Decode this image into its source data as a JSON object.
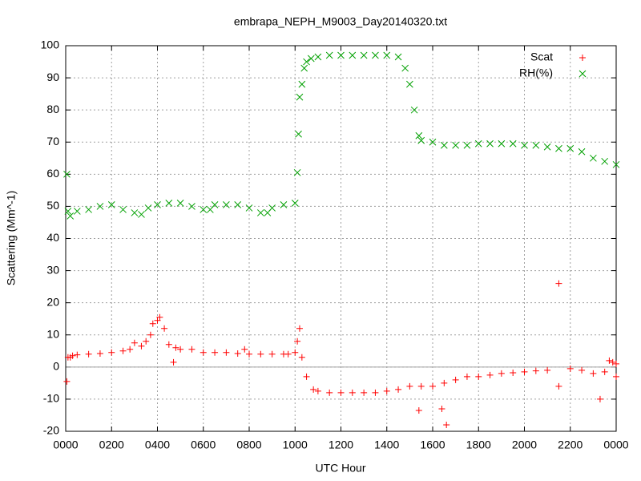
{
  "chart_data": {
    "type": "scatter",
    "title": "embrapa_NEPH_M9003_Day20140320.txt",
    "xlabel": "UTC Hour",
    "ylabel": "Scattering (Mm^-1)",
    "xlim": [
      0,
      24
    ],
    "xticks": [
      {
        "value": 0,
        "label": "0000"
      },
      {
        "value": 2,
        "label": "0200"
      },
      {
        "value": 4,
        "label": "0400"
      },
      {
        "value": 6,
        "label": "0600"
      },
      {
        "value": 8,
        "label": "0800"
      },
      {
        "value": 10,
        "label": "1000"
      },
      {
        "value": 12,
        "label": "1200"
      },
      {
        "value": 14,
        "label": "1400"
      },
      {
        "value": 16,
        "label": "1600"
      },
      {
        "value": 18,
        "label": "1800"
      },
      {
        "value": 20,
        "label": "2000"
      },
      {
        "value": 22,
        "label": "2200"
      },
      {
        "value": 24,
        "label": "0000"
      }
    ],
    "ylim": [
      -20,
      100
    ],
    "yticks": [
      -20,
      -10,
      0,
      10,
      20,
      30,
      40,
      50,
      60,
      70,
      80,
      90,
      100
    ],
    "grid": true,
    "zeroaxis": true,
    "legend": "top-right",
    "series": [
      {
        "name": "Scat",
        "color": "#ff0000",
        "marker": "plus",
        "x": [
          0.05,
          0.1,
          0.2,
          0.3,
          0.5,
          1,
          1.5,
          2,
          2.5,
          2.8,
          3,
          3.3,
          3.5,
          3.7,
          3.8,
          4,
          4.1,
          4.3,
          4.5,
          4.7,
          4.8,
          5,
          5.5,
          6,
          6.5,
          7,
          7.5,
          7.8,
          8,
          8.5,
          9,
          9.5,
          9.7,
          10,
          10.1,
          10.2,
          10.3,
          10.5,
          10.8,
          11,
          11.5,
          12,
          12.5,
          13,
          13.5,
          14,
          14.5,
          15,
          15.4,
          15.5,
          16,
          16.4,
          16.5,
          16.6,
          17,
          17.5,
          18,
          18.5,
          19,
          19.5,
          20,
          20.5,
          21,
          21.5,
          21.5,
          22,
          22.5,
          23,
          23.3,
          23.5,
          23.7,
          23.85,
          24,
          24
        ],
        "values": [
          -4.5,
          3,
          3,
          3.5,
          3.8,
          4,
          4.2,
          4.5,
          5,
          5.5,
          7.5,
          6.5,
          8,
          10,
          13.5,
          14.5,
          15.5,
          12,
          7,
          1.5,
          6,
          5.5,
          5.5,
          4.5,
          4.5,
          4.5,
          4.2,
          5.5,
          4,
          4,
          4,
          4,
          4,
          4.5,
          8,
          12,
          3,
          -3,
          -7,
          -7.5,
          -8,
          -8,
          -8,
          -8,
          -8,
          -7.5,
          -7,
          -6,
          -13.5,
          -6,
          -6,
          -13,
          -5,
          -18,
          -4,
          -3,
          -3,
          -2.5,
          -2,
          -1.8,
          -1.5,
          -1.2,
          -1,
          26,
          -6,
          -0.5,
          -1,
          -2,
          -10,
          -1.5,
          2,
          1.5,
          1,
          -3
        ]
      },
      {
        "name": "RH(%)",
        "color": "#00a000",
        "marker": "cross",
        "x": [
          0.05,
          0.1,
          0.2,
          0.5,
          1,
          1.5,
          2,
          2.5,
          3,
          3.3,
          3.6,
          4,
          4.5,
          5,
          5.5,
          6,
          6.3,
          6.5,
          7,
          7.5,
          8,
          8.5,
          8.8,
          9,
          9.5,
          10,
          10.1,
          10.15,
          10.2,
          10.3,
          10.4,
          10.5,
          10.7,
          11,
          11.5,
          12,
          12.5,
          13,
          13.5,
          14,
          14.5,
          14.8,
          15,
          15.2,
          15.4,
          15.5,
          16,
          16.5,
          17,
          17.5,
          18,
          18.5,
          19,
          19.5,
          20,
          20.5,
          21,
          21.5,
          22,
          22.5,
          23,
          23.5,
          24
        ],
        "values": [
          60,
          48.5,
          47,
          48.5,
          49,
          50,
          50.5,
          49,
          48,
          47.5,
          49.5,
          50.5,
          51,
          51,
          50,
          49,
          49,
          50.5,
          50.5,
          50.5,
          49.5,
          48,
          48,
          49.5,
          50.5,
          51,
          60.5,
          72.5,
          84,
          88,
          93,
          95,
          96,
          96.5,
          97,
          97,
          97,
          97,
          97,
          97,
          96.5,
          93,
          88,
          80,
          72,
          70.5,
          70,
          69,
          69,
          69,
          69.5,
          69.5,
          69.5,
          69.5,
          69,
          69,
          68.5,
          68,
          68,
          67,
          65,
          64,
          63
        ]
      }
    ]
  }
}
